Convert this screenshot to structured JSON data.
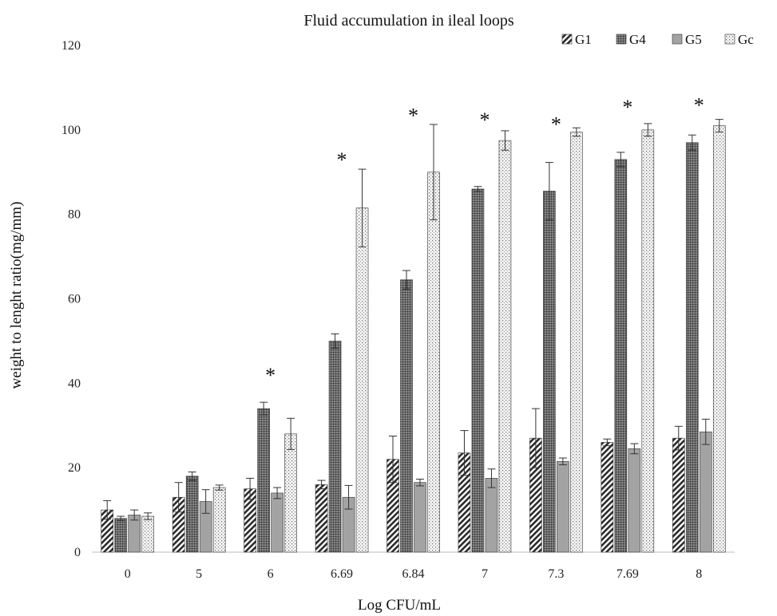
{
  "chart_data": {
    "type": "bar",
    "title": "Fluid accumulation in ileal loops",
    "xlabel": "Log CFU/mL",
    "ylabel": "weight to lenght ratio(mg/mm)",
    "ylim": [
      0,
      120
    ],
    "yticks": [
      0,
      20,
      40,
      60,
      80,
      100,
      120
    ],
    "grid": false,
    "legend_position": "top-right",
    "categories": [
      "0",
      "5",
      "6",
      "6.69",
      "6.84",
      "7",
      "7.3",
      "7.69",
      "8"
    ],
    "series": [
      {
        "name": "G1",
        "pattern": "diagonal-hatch",
        "color": "#2b2b2b",
        "values": [
          10,
          13,
          15,
          16,
          22,
          23.5,
          27,
          26,
          27
        ],
        "errors": [
          2.2,
          3.5,
          2.5,
          1,
          5.5,
          5.3,
          7,
          0.8,
          2.8
        ]
      },
      {
        "name": "G4",
        "pattern": "dense-dots",
        "color": "#555555",
        "values": [
          8,
          18,
          34,
          50,
          64.5,
          86,
          85.5,
          93,
          97
        ],
        "errors": [
          0.5,
          1,
          1.5,
          1.7,
          2.2,
          0.6,
          6.8,
          1.7,
          1.8
        ]
      },
      {
        "name": "G5",
        "pattern": "solid",
        "color": "#a3a3a3",
        "values": [
          8.8,
          12,
          14,
          13,
          16.5,
          17.5,
          21.5,
          24.5,
          28.5
        ],
        "errors": [
          1.2,
          2.8,
          1.3,
          2.8,
          0.8,
          2.2,
          0.8,
          1.2,
          3
        ]
      },
      {
        "name": "Gc",
        "pattern": "sparse-dots",
        "color": "#9a9a9a",
        "values": [
          8.5,
          15.3,
          28,
          81.5,
          90,
          97.5,
          99.5,
          100,
          101
        ],
        "errors": [
          0.8,
          0.6,
          3.7,
          9.2,
          11.3,
          2.3,
          1,
          1.5,
          1.5
        ]
      }
    ],
    "annotations": [
      {
        "category": "6",
        "text": "*",
        "y": 42.5
      },
      {
        "category": "6.69",
        "text": "*",
        "y": 93.5
      },
      {
        "category": "6.84",
        "text": "*",
        "y": 104
      },
      {
        "category": "7",
        "text": "*",
        "y": 103
      },
      {
        "category": "7.3",
        "text": "*",
        "y": 102
      },
      {
        "category": "7.69",
        "text": "*",
        "y": 106
      },
      {
        "category": "8",
        "text": "*",
        "y": 106.5
      }
    ]
  }
}
